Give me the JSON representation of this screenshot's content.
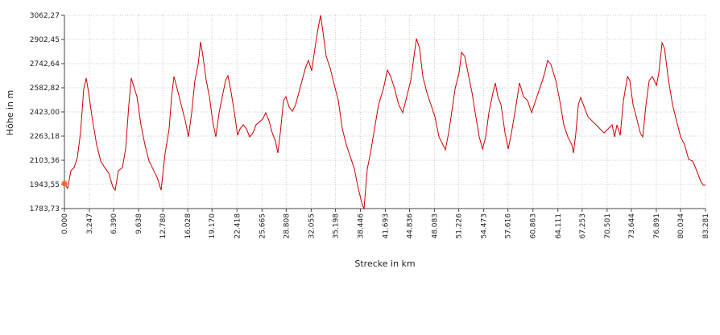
{
  "chart_data": {
    "type": "line",
    "ylabel": "Höhe  in  m",
    "xlabel": "Strecke  in  km",
    "color": "#cc0000",
    "marker_color": "#ff6633",
    "grid": true,
    "xlim": [
      0,
      83.281
    ],
    "ylim": [
      1783.73,
      3062.27
    ],
    "xticks": [
      {
        "value": 0,
        "label": "0.000"
      },
      3.247,
      {
        "value": 6.39,
        "label": "6.390"
      },
      9.638,
      {
        "value": 12.78,
        "label": "12.780"
      },
      16.028,
      {
        "value": 19.17,
        "label": "19.170"
      },
      22.418,
      25.665,
      28.808,
      32.055,
      35.198,
      38.446,
      41.693,
      44.836,
      48.083,
      51.226,
      54.473,
      57.616,
      60.863,
      64.111,
      67.253,
      70.501,
      73.644,
      76.891,
      80.034,
      83.281
    ],
    "yticks": [
      {
        "value": 1783.73,
        "label": "1783,73"
      },
      {
        "value": 1943.55,
        "label": "1943,55"
      },
      {
        "value": 2103.36,
        "label": "2103,36"
      },
      {
        "value": 2263.18,
        "label": "2263,18"
      },
      {
        "value": 2423.0,
        "label": "2423,00"
      },
      {
        "value": 2582.82,
        "label": "2582,82"
      },
      {
        "value": 2742.64,
        "label": "2742,64"
      },
      {
        "value": 2902.45,
        "label": "2902,45"
      },
      {
        "value": 3062.27,
        "label": "3062,27"
      }
    ],
    "x": [
      0,
      0.42,
      0.84,
      1.26,
      1.67,
      2.09,
      2.51,
      2.83,
      3.14,
      3.66,
      4.19,
      4.71,
      5.23,
      5.76,
      6.28,
      6.59,
      7.01,
      7.53,
      7.95,
      8.37,
      8.68,
      9.42,
      9.94,
      10.46,
      10.99,
      11.51,
      12.03,
      12.56,
      13.08,
      13.6,
      13.92,
      14.23,
      14.65,
      15.17,
      15.7,
      16.11,
      16.53,
      16.95,
      17.37,
      17.69,
      18.0,
      18.42,
      18.84,
      19.25,
      19.67,
      20.09,
      20.51,
      20.93,
      21.24,
      21.66,
      22.08,
      22.5,
      22.81,
      23.23,
      23.65,
      24.07,
      24.48,
      24.9,
      25.74,
      26.16,
      26.58,
      27.0,
      27.41,
      27.73,
      28.04,
      28.46,
      28.77,
      29.19,
      29.61,
      30.03,
      30.45,
      30.87,
      31.29,
      31.7,
      32.12,
      32.54,
      32.96,
      33.27,
      33.59,
      34.01,
      34.53,
      35.05,
      35.58,
      36.1,
      36.62,
      37.15,
      37.67,
      38.19,
      38.72,
      38.92,
      39.34,
      39.76,
      40.28,
      40.81,
      41.44,
      41.96,
      42.38,
      42.9,
      43.42,
      43.95,
      44.47,
      44.99,
      45.41,
      45.73,
      46.14,
      46.56,
      47.09,
      47.61,
      48.13,
      48.66,
      49.18,
      49.49,
      49.91,
      50.23,
      50.75,
      51.27,
      51.59,
      52.01,
      52.42,
      52.95,
      53.36,
      53.89,
      54.31,
      54.73,
      55.14,
      55.67,
      55.98,
      56.3,
      56.71,
      57.24,
      57.65,
      58.07,
      58.6,
      59.12,
      59.64,
      60.17,
      60.69,
      61.21,
      61.74,
      62.26,
      62.78,
      63.2,
      63.83,
      64.35,
      64.87,
      65.4,
      65.92,
      66.13,
      66.44,
      66.76,
      67.07,
      67.49,
      68.01,
      68.54,
      69.06,
      69.58,
      70.11,
      70.63,
      71.15,
      71.47,
      71.78,
      72.2,
      72.62,
      73.14,
      73.45,
      73.87,
      74.29,
      74.81,
      75.13,
      75.55,
      75.97,
      76.38,
      76.91,
      77.22,
      77.64,
      77.95,
      78.48,
      79.0,
      79.52,
      80.05,
      80.57,
      81.09,
      81.62,
      82.14,
      82.66,
      82.98,
      83.28
    ],
    "values": [
      1949,
      1917,
      2034,
      2055,
      2119,
      2285,
      2577,
      2647,
      2551,
      2364,
      2205,
      2098,
      2055,
      2018,
      1928,
      1906,
      2034,
      2055,
      2178,
      2471,
      2647,
      2524,
      2338,
      2205,
      2098,
      2045,
      1991,
      1906,
      2151,
      2311,
      2524,
      2657,
      2577,
      2471,
      2364,
      2258,
      2418,
      2631,
      2737,
      2886,
      2790,
      2631,
      2524,
      2364,
      2258,
      2418,
      2524,
      2631,
      2663,
      2551,
      2418,
      2268,
      2311,
      2338,
      2311,
      2258,
      2284,
      2338,
      2375,
      2418,
      2364,
      2284,
      2231,
      2151,
      2284,
      2498,
      2524,
      2455,
      2428,
      2471,
      2551,
      2631,
      2711,
      2764,
      2695,
      2844,
      2977,
      3062.27,
      2950,
      2790,
      2711,
      2604,
      2498,
      2311,
      2205,
      2125,
      2045,
      1912,
      1805,
      1783.73,
      2045,
      2151,
      2311,
      2471,
      2577,
      2700,
      2657,
      2577,
      2471,
      2418,
      2524,
      2631,
      2790,
      2908,
      2844,
      2657,
      2551,
      2471,
      2391,
      2258,
      2205,
      2173,
      2284,
      2391,
      2577,
      2684,
      2817,
      2790,
      2684,
      2551,
      2418,
      2258,
      2178,
      2258,
      2418,
      2551,
      2615,
      2524,
      2471,
      2284,
      2178,
      2284,
      2444,
      2615,
      2524,
      2498,
      2418,
      2498,
      2577,
      2657,
      2764,
      2737,
      2631,
      2498,
      2338,
      2258,
      2205,
      2151,
      2284,
      2471,
      2519,
      2460,
      2391,
      2364,
      2338,
      2311,
      2284,
      2311,
      2338,
      2258,
      2338,
      2268,
      2498,
      2657,
      2631,
      2471,
      2391,
      2284,
      2258,
      2471,
      2631,
      2657,
      2599,
      2684,
      2881,
      2844,
      2631,
      2471,
      2364,
      2258,
      2205,
      2109,
      2098,
      2034,
      1965,
      1938,
      1938
    ]
  }
}
